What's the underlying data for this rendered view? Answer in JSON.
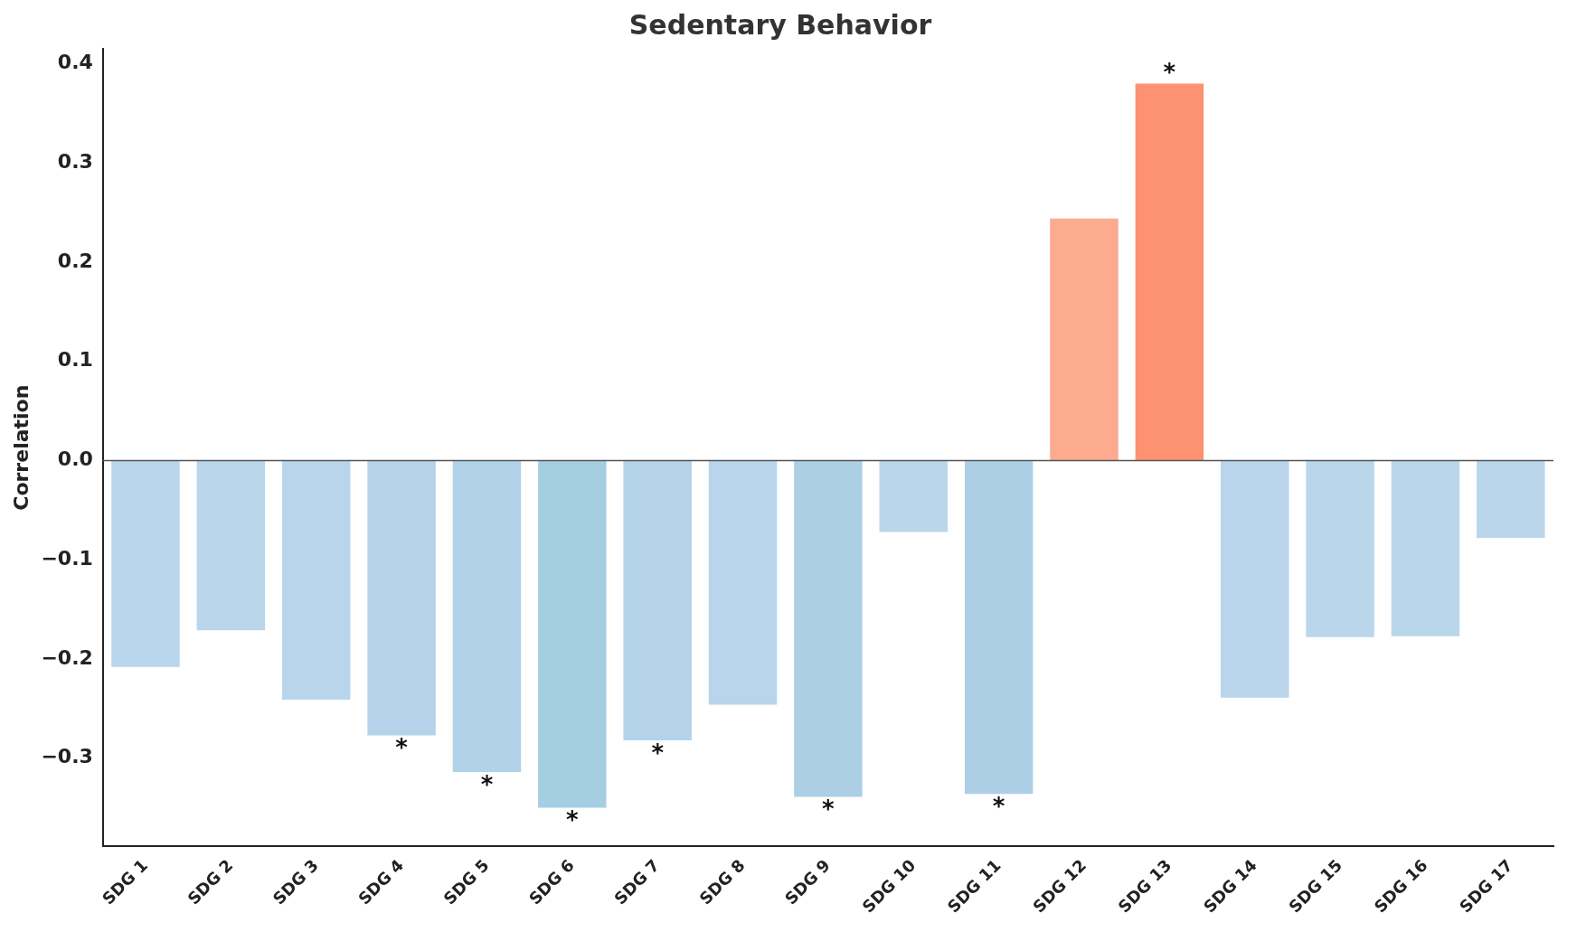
{
  "chart_data": {
    "type": "bar",
    "title": "Sedentary Behavior",
    "ylabel": "Correlation",
    "categories": [
      "SDG 1",
      "SDG 2",
      "SDG 3",
      "SDG 4",
      "SDG 5",
      "SDG 6",
      "SDG 7",
      "SDG 8",
      "SDG 9",
      "SDG 10",
      "SDG 11",
      "SDG 12",
      "SDG 13",
      "SDG 14",
      "SDG 15",
      "SDG 16",
      "SDG 17"
    ],
    "values": [
      -0.208,
      -0.171,
      -0.241,
      -0.277,
      -0.314,
      -0.35,
      -0.282,
      -0.246,
      -0.339,
      -0.072,
      -0.336,
      0.244,
      0.38,
      -0.239,
      -0.178,
      -0.177,
      -0.078
    ],
    "colors": [
      "#b8d5eb",
      "#b9d6eb",
      "#b8d5eb",
      "#b4d3ea",
      "#b1d2e9",
      "#a6cee3",
      "#b4d3ea",
      "#b8d5eb",
      "#accfe5",
      "#b9d6eb",
      "#accfe5",
      "#fcab8f",
      "#fc9272",
      "#b8d5eb",
      "#b9d6eb",
      "#b9d6eb",
      "#b9d6eb"
    ],
    "ylim": [
      -0.389,
      0.415
    ],
    "yticks": [
      {
        "value": -0.3,
        "label": "−0.3"
      },
      {
        "value": -0.2,
        "label": "−0.2"
      },
      {
        "value": -0.1,
        "label": "−0.1"
      },
      {
        "value": 0,
        "label": "0.0"
      },
      {
        "value": 0.1,
        "label": "0.1"
      },
      {
        "value": 0.2,
        "label": "0.2"
      },
      {
        "value": 0.3,
        "label": "0.3"
      },
      {
        "value": 0.4,
        "label": "0.4"
      }
    ],
    "ref_lines": [
      {
        "axis": "y",
        "value": 0,
        "color": "#555555"
      }
    ],
    "annotations": [
      {
        "text": "*",
        "x": "SDG 4",
        "y": -0.277
      },
      {
        "text": "*",
        "x": "SDG 5",
        "y": -0.314
      },
      {
        "text": "*",
        "x": "SDG 6",
        "y": -0.35
      },
      {
        "text": "*",
        "x": "SDG 7",
        "y": -0.282
      },
      {
        "text": "*",
        "x": "SDG 9",
        "y": -0.339
      },
      {
        "text": "*",
        "x": "SDG 11",
        "y": -0.336
      },
      {
        "text": "*",
        "x": "SDG 13",
        "y": 0.38
      }
    ],
    "grid": false,
    "legend": false
  }
}
